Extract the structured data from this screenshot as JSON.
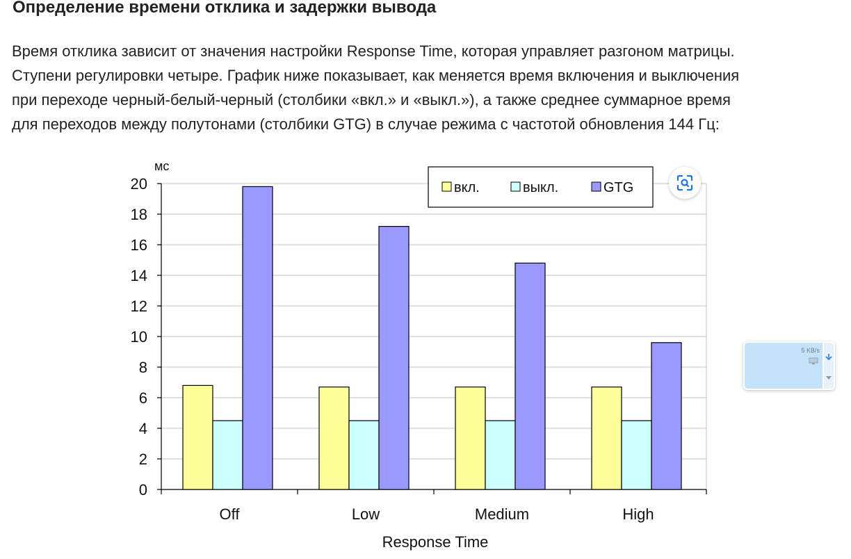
{
  "article": {
    "heading": "Определение времени отклика и задержки вывода",
    "paragraph_lines": [
      "Время отклика зависит от значения настройки Response Time, которая управляет разгоном матрицы.",
      "Ступени регулировки четыре. График ниже показывает, как меняется время включения и выключения",
      "при переходе черный-белый-черный (столбики «вкл.» и «выкл.»), а также среднее суммарное время",
      "для переходов между полутонами (столбики GTG) в случае режима с частотой обновления 144 Гц:"
    ]
  },
  "chart_data": {
    "type": "bar",
    "ylabel": "мс",
    "xlabel": "Response Time",
    "categories": [
      "Off",
      "Low",
      "Medium",
      "High"
    ],
    "ylim": [
      0,
      20
    ],
    "yticks": [
      0,
      2,
      4,
      6,
      8,
      10,
      12,
      14,
      16,
      18,
      20
    ],
    "grid": true,
    "legend_position": "top-right",
    "series": [
      {
        "name": "вкл.",
        "values": [
          6.8,
          6.7,
          6.7,
          6.7
        ],
        "color": "#ffff99"
      },
      {
        "name": "выкл.",
        "values": [
          4.5,
          4.5,
          4.5,
          4.5
        ],
        "color": "#ccffff"
      },
      {
        "name": "GTG",
        "values": [
          19.8,
          17.2,
          14.8,
          9.6
        ],
        "color": "#9999ff"
      }
    ]
  },
  "overlays": {
    "lens_icon": "visual-search-icon",
    "speed_widget_text": "5 KB/s"
  }
}
